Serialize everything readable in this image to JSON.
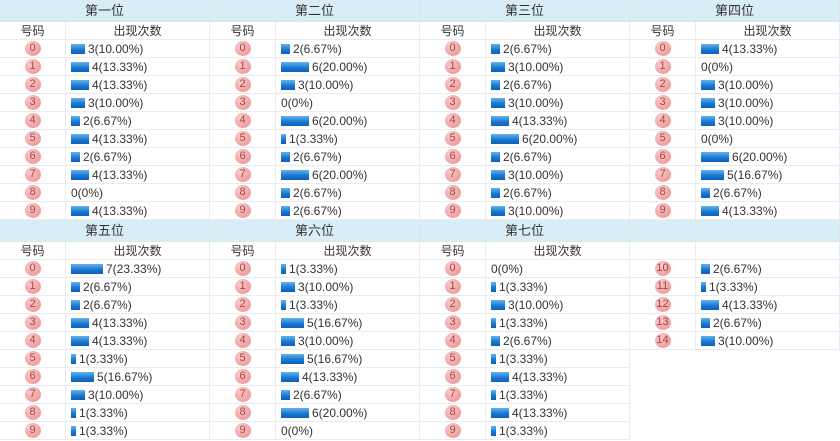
{
  "table": {
    "number_header": "号码",
    "count_header": "出现次数"
  },
  "colors": {
    "title_bg": "#d9edf7",
    "bar_top": "#66b2ea",
    "bar_bottom": "#0b60b8",
    "badge_bg": "#f2a4a4",
    "badge_text": "#a04646",
    "border": "#e6ecf0"
  },
  "chart_data": [
    {
      "type": "bar",
      "title": "第一位",
      "xlabel": "号码",
      "ylabel": "出现次数",
      "categories": [
        "0",
        "1",
        "2",
        "3",
        "4",
        "5",
        "6",
        "7",
        "8",
        "9"
      ],
      "values": [
        3,
        4,
        4,
        3,
        2,
        4,
        2,
        4,
        0,
        4
      ],
      "labels": [
        "3(10.00%)",
        "4(13.33%)",
        "4(13.33%)",
        "3(10.00%)",
        "2(6.67%)",
        "4(13.33%)",
        "2(6.67%)",
        "4(13.33%)",
        "0(0%)",
        "4(13.33%)"
      ]
    },
    {
      "type": "bar",
      "title": "第二位",
      "xlabel": "号码",
      "ylabel": "出现次数",
      "categories": [
        "0",
        "1",
        "2",
        "3",
        "4",
        "5",
        "6",
        "7",
        "8",
        "9"
      ],
      "values": [
        2,
        6,
        3,
        0,
        6,
        1,
        2,
        6,
        2,
        2
      ],
      "labels": [
        "2(6.67%)",
        "6(20.00%)",
        "3(10.00%)",
        "0(0%)",
        "6(20.00%)",
        "1(3.33%)",
        "2(6.67%)",
        "6(20.00%)",
        "2(6.67%)",
        "2(6.67%)"
      ]
    },
    {
      "type": "bar",
      "title": "第三位",
      "xlabel": "号码",
      "ylabel": "出现次数",
      "categories": [
        "0",
        "1",
        "2",
        "3",
        "4",
        "5",
        "6",
        "7",
        "8",
        "9"
      ],
      "values": [
        2,
        3,
        2,
        3,
        4,
        6,
        2,
        3,
        2,
        3
      ],
      "labels": [
        "2(6.67%)",
        "3(10.00%)",
        "2(6.67%)",
        "3(10.00%)",
        "4(13.33%)",
        "6(20.00%)",
        "2(6.67%)",
        "3(10.00%)",
        "2(6.67%)",
        "3(10.00%)"
      ]
    },
    {
      "type": "bar",
      "title": "第四位",
      "xlabel": "号码",
      "ylabel": "出现次数",
      "categories": [
        "0",
        "1",
        "2",
        "3",
        "4",
        "5",
        "6",
        "7",
        "8",
        "9"
      ],
      "values": [
        4,
        0,
        3,
        3,
        3,
        0,
        6,
        5,
        2,
        4
      ],
      "labels": [
        "4(13.33%)",
        "0(0%)",
        "3(10.00%)",
        "3(10.00%)",
        "3(10.00%)",
        "0(0%)",
        "6(20.00%)",
        "5(16.67%)",
        "2(6.67%)",
        "4(13.33%)"
      ]
    },
    {
      "type": "bar",
      "title": "第五位",
      "xlabel": "号码",
      "ylabel": "出现次数",
      "categories": [
        "0",
        "1",
        "2",
        "3",
        "4",
        "5",
        "6",
        "7",
        "8",
        "9"
      ],
      "values": [
        7,
        2,
        2,
        4,
        4,
        1,
        5,
        3,
        1,
        1
      ],
      "labels": [
        "7(23.33%)",
        "2(6.67%)",
        "2(6.67%)",
        "4(13.33%)",
        "4(13.33%)",
        "1(3.33%)",
        "5(16.67%)",
        "3(10.00%)",
        "1(3.33%)",
        "1(3.33%)"
      ]
    },
    {
      "type": "bar",
      "title": "第六位",
      "xlabel": "号码",
      "ylabel": "出现次数",
      "categories": [
        "0",
        "1",
        "2",
        "3",
        "4",
        "5",
        "6",
        "7",
        "8",
        "9"
      ],
      "values": [
        1,
        3,
        1,
        5,
        3,
        5,
        4,
        2,
        6,
        0
      ],
      "labels": [
        "1(3.33%)",
        "3(10.00%)",
        "1(3.33%)",
        "5(16.67%)",
        "3(10.00%)",
        "5(16.67%)",
        "4(13.33%)",
        "2(6.67%)",
        "6(20.00%)",
        "0(0%)"
      ]
    },
    {
      "type": "bar",
      "title": "第七位",
      "xlabel": "号码",
      "ylabel": "出现次数",
      "categories": [
        "0",
        "1",
        "2",
        "3",
        "4",
        "5",
        "6",
        "7",
        "8",
        "9",
        "10",
        "11",
        "12",
        "13",
        "14"
      ],
      "values": [
        0,
        1,
        3,
        1,
        2,
        1,
        4,
        1,
        4,
        1,
        2,
        1,
        4,
        2,
        3
      ],
      "labels": [
        "0(0%)",
        "1(3.33%)",
        "3(10.00%)",
        "1(3.33%)",
        "2(6.67%)",
        "1(3.33%)",
        "4(13.33%)",
        "1(3.33%)",
        "4(13.33%)",
        "1(3.33%)",
        "2(6.67%)",
        "1(3.33%)",
        "4(13.33%)",
        "2(6.67%)",
        "3(10.00%)"
      ]
    }
  ]
}
